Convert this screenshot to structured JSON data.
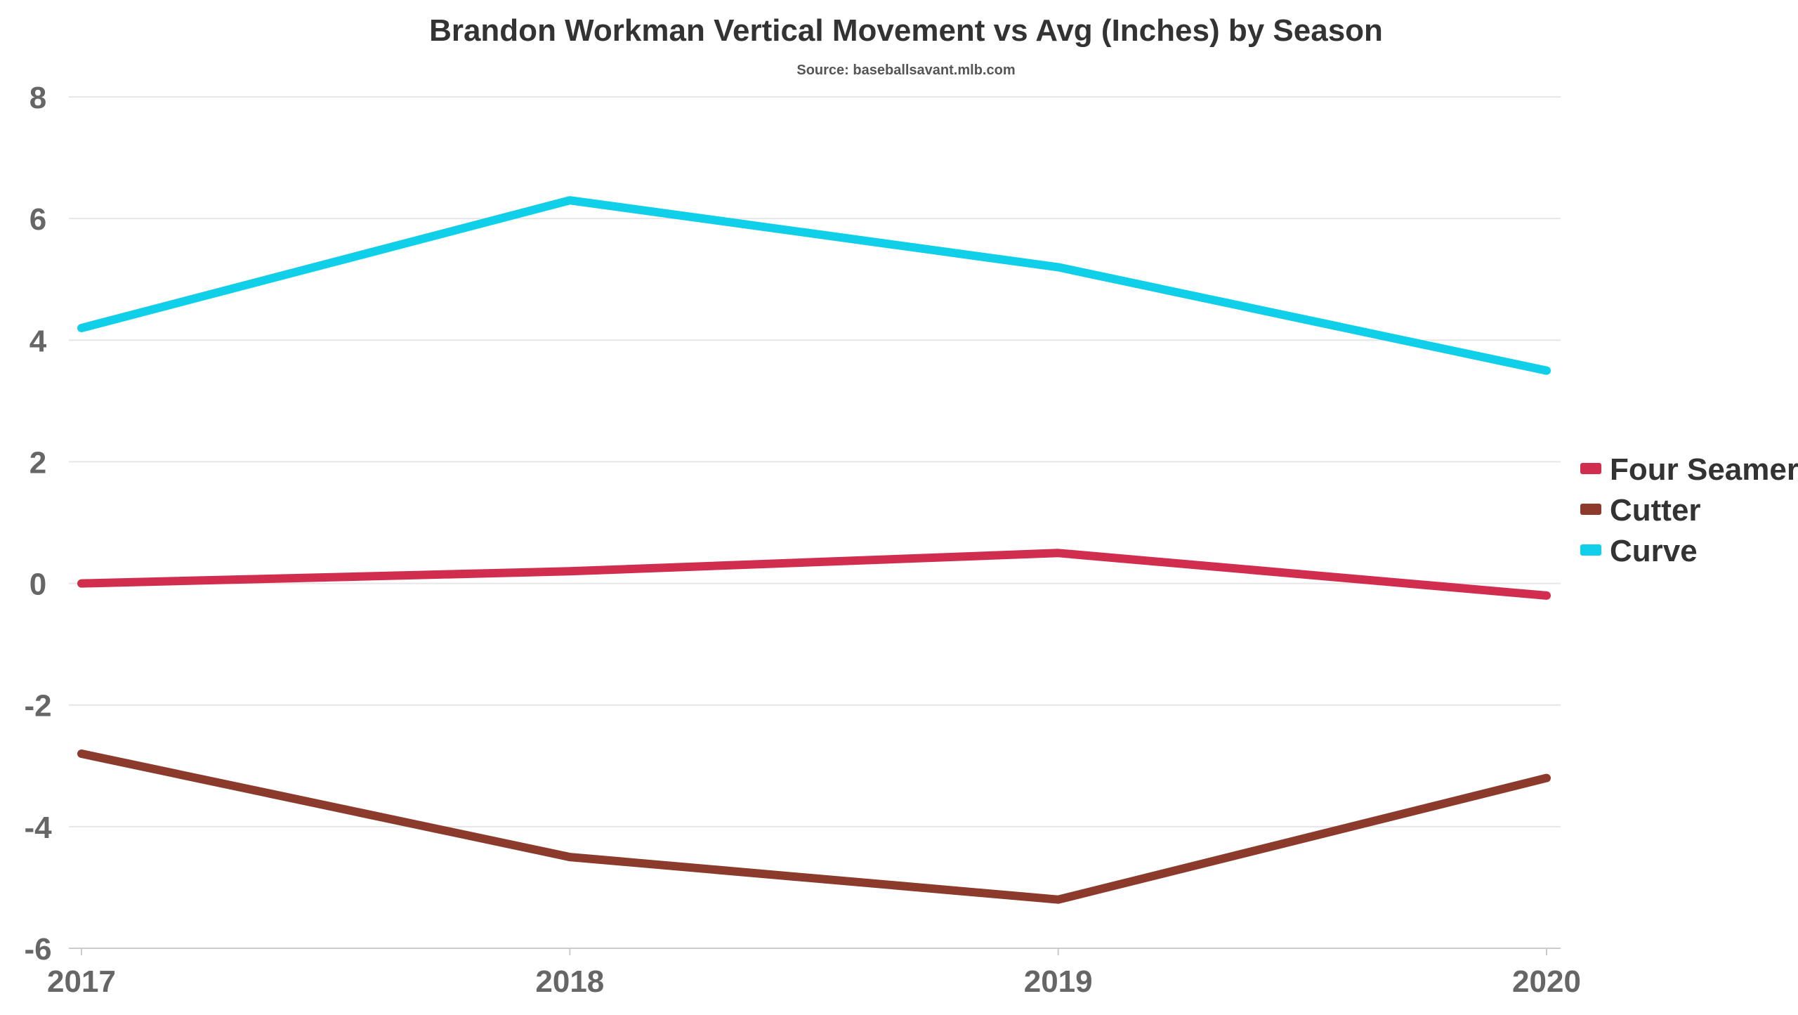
{
  "chart_data": {
    "type": "line",
    "title": "Brandon Workman Vertical Movement vs Avg (Inches) by Season",
    "subtitle": "Source: baseballsavant.mlb.com",
    "xlabel": "",
    "ylabel": "",
    "categories": [
      "2017",
      "2018",
      "2019",
      "2020"
    ],
    "ylim": [
      -6,
      8
    ],
    "yticks": [
      8,
      6,
      4,
      2,
      0,
      -2,
      -4,
      -6
    ],
    "grid": true,
    "legend_position": "right",
    "series": [
      {
        "name": "Four Seamer",
        "color": "#d12e4f",
        "values": [
          0.0,
          0.2,
          0.5,
          -0.2
        ]
      },
      {
        "name": "Cutter",
        "color": "#8b3a2b",
        "values": [
          -2.8,
          -4.5,
          -5.2,
          -3.2
        ]
      },
      {
        "name": "Curve",
        "color": "#0fd0e8",
        "values": [
          4.2,
          6.3,
          5.2,
          3.5
        ]
      }
    ]
  }
}
